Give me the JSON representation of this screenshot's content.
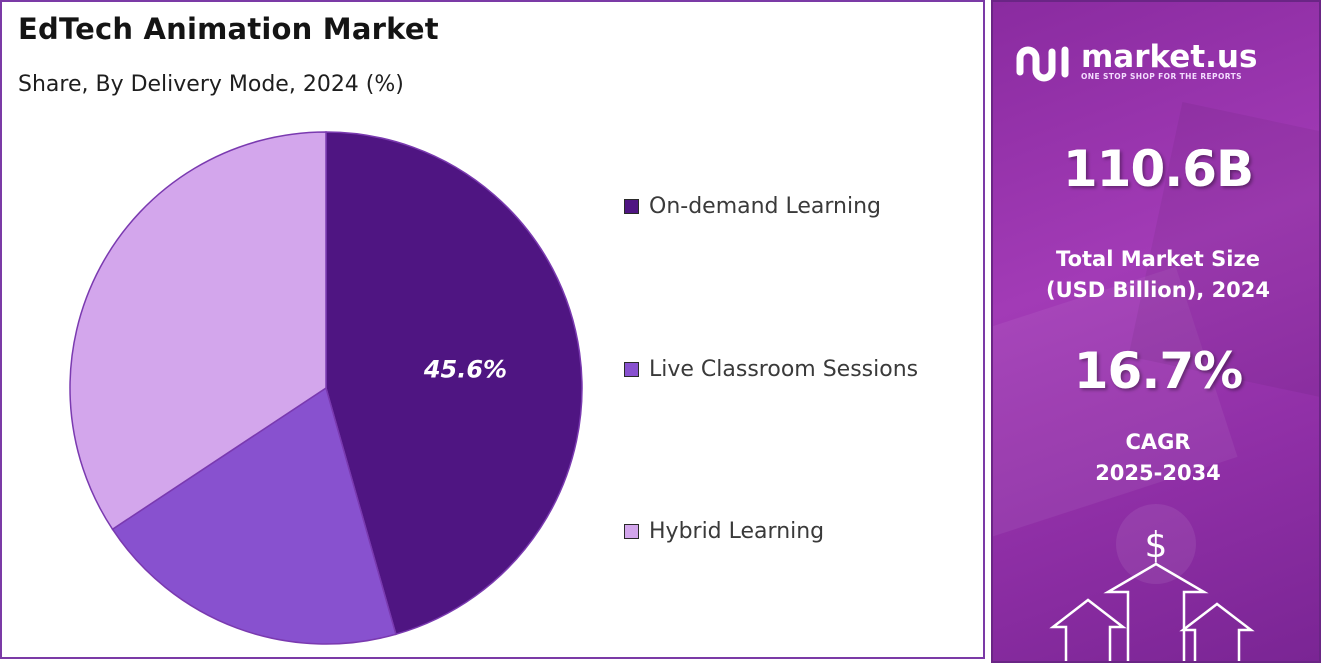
{
  "chart_data": {
    "type": "pie",
    "title": "EdTech Animation Market",
    "subtitle": "Share, By Delivery Mode, 2024 (%)",
    "categories": [
      "On-demand Learning",
      "Live Classroom Sessions",
      "Hybrid Learning"
    ],
    "values": [
      45.6,
      20.1,
      34.3
    ],
    "colors": [
      "#4f1582",
      "#8851cf",
      "#d3a6ec"
    ],
    "data_labels": [
      "45.6%",
      "",
      ""
    ],
    "legend_position": "right"
  },
  "sidebar": {
    "brand": {
      "name": "market.us",
      "tagline": "ONE STOP SHOP FOR THE REPORTS",
      "icon": "market-us-logo-icon"
    },
    "market_size": {
      "value": "110.6B",
      "label_line1": "Total Market Size",
      "label_line2": "(USD Billion), 2024"
    },
    "cagr": {
      "value": "16.7%",
      "label_line1": "CAGR",
      "label_line2": "2025-2034"
    },
    "decoration": {
      "currency_symbol": "$",
      "icon": "up-arrows-icon"
    },
    "colors": {
      "background": "#9a35b0",
      "text": "#ffffff"
    }
  }
}
